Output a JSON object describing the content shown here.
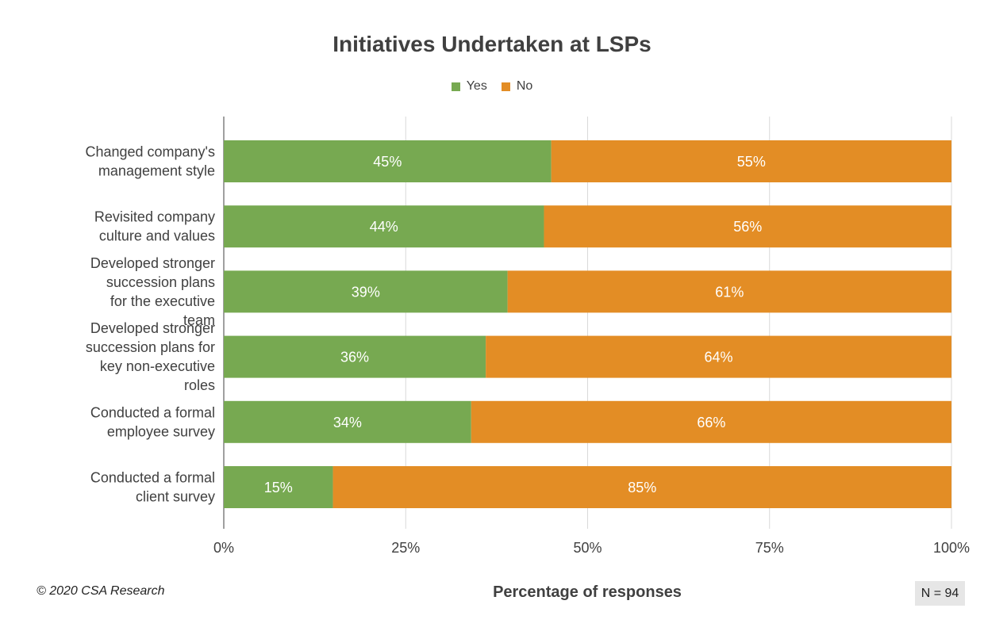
{
  "chart_data": {
    "type": "bar",
    "orientation": "horizontal",
    "stacked": true,
    "title": "Initiatives Undertaken at LSPs",
    "categories": [
      "Changed company's management style",
      "Revisited company culture and values",
      "Developed stronger succession plans for the executive team",
      "Developed stronger succession plans for key non-executive roles",
      "Conducted a formal employee survey",
      "Conducted a formal client survey"
    ],
    "series": [
      {
        "name": "Yes",
        "color": "#77a951",
        "values": [
          45,
          44,
          39,
          36,
          34,
          15
        ]
      },
      {
        "name": "No",
        "color": "#e38d25",
        "values": [
          55,
          56,
          61,
          64,
          66,
          85
        ]
      }
    ],
    "xlabel": "Percentage of responses",
    "xlim": [
      0,
      100
    ],
    "xticks": [
      "0%",
      "25%",
      "50%",
      "75%",
      "100%"
    ],
    "legend_position": "top",
    "grid": true
  },
  "footer": {
    "copyright": "© 2020 CSA Research",
    "sample_note": "N = 94"
  }
}
